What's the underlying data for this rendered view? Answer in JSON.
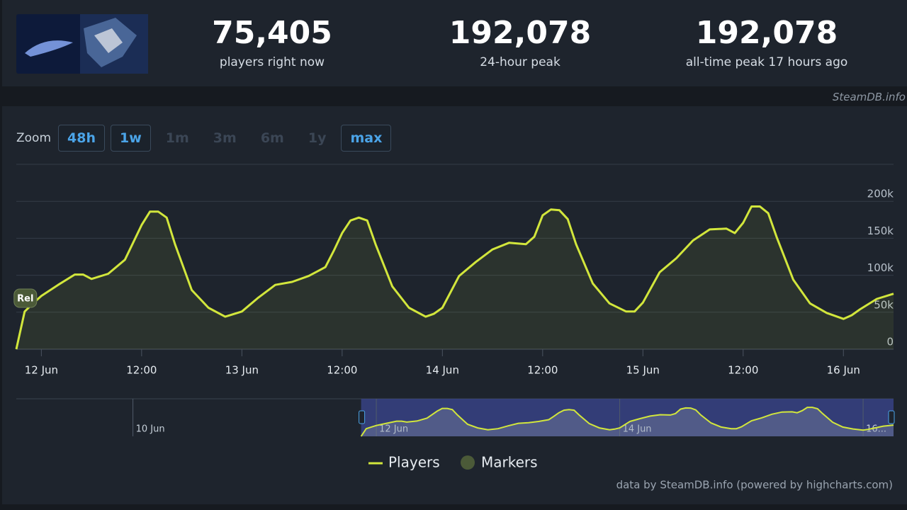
{
  "header": {
    "stats": [
      {
        "value": "75,405",
        "label": "players right now"
      },
      {
        "value": "192,078",
        "label": "24-hour peak"
      },
      {
        "value": "192,078",
        "label": "all-time peak 17 hours ago"
      }
    ],
    "watermark": "SteamDB.info"
  },
  "zoom": {
    "label": "Zoom",
    "buttons": [
      {
        "text": "48h",
        "enabled": true
      },
      {
        "text": "1w",
        "enabled": true
      },
      {
        "text": "1m",
        "enabled": false
      },
      {
        "text": "3m",
        "enabled": false
      },
      {
        "text": "6m",
        "enabled": false
      },
      {
        "text": "1y",
        "enabled": false
      },
      {
        "text": "max",
        "enabled": true
      }
    ]
  },
  "chart_data": {
    "type": "line",
    "x": [
      "11 Jun 21:00",
      "11 Jun 22:00",
      "11 Jun 23:00",
      "12 Jun 00:00",
      "12 Jun 02:00",
      "12 Jun 04:00",
      "12 Jun 05:00",
      "12 Jun 06:00",
      "12 Jun 08:00",
      "12 Jun 10:00",
      "12 Jun 12:00",
      "12 Jun 13:00",
      "12 Jun 14:00",
      "12 Jun 15:00",
      "12 Jun 16:00",
      "12 Jun 18:00",
      "12 Jun 20:00",
      "12 Jun 22:00",
      "13 Jun 00:00",
      "13 Jun 02:00",
      "13 Jun 04:00",
      "13 Jun 06:00",
      "13 Jun 08:00",
      "13 Jun 10:00",
      "13 Jun 11:00",
      "13 Jun 12:00",
      "13 Jun 13:00",
      "13 Jun 14:00",
      "13 Jun 15:00",
      "13 Jun 16:00",
      "13 Jun 18:00",
      "13 Jun 20:00",
      "13 Jun 22:00",
      "13 Jun 23:00",
      "14 Jun 00:00",
      "14 Jun 02:00",
      "14 Jun 04:00",
      "14 Jun 06:00",
      "14 Jun 08:00",
      "14 Jun 10:00",
      "14 Jun 11:00",
      "14 Jun 12:00",
      "14 Jun 13:00",
      "14 Jun 14:00",
      "14 Jun 15:00",
      "14 Jun 16:00",
      "14 Jun 18:00",
      "14 Jun 20:00",
      "14 Jun 22:00",
      "14 Jun 23:00",
      "15 Jun 00:00",
      "15 Jun 02:00",
      "15 Jun 04:00",
      "15 Jun 06:00",
      "15 Jun 08:00",
      "15 Jun 10:00",
      "15 Jun 11:00",
      "15 Jun 12:00",
      "15 Jun 13:00",
      "15 Jun 14:00",
      "15 Jun 15:00",
      "15 Jun 16:00",
      "15 Jun 18:00",
      "15 Jun 20:00",
      "15 Jun 22:00",
      "16 Jun 00:00",
      "16 Jun 01:00",
      "16 Jun 02:00",
      "16 Jun 04:00",
      "16 Jun 06:00"
    ],
    "series": [
      {
        "name": "Players",
        "color": "#d2e63c",
        "values": [
          0,
          51000,
          62000,
          72000,
          87000,
          101000,
          101000,
          95000,
          102000,
          121000,
          168000,
          186000,
          186000,
          178000,
          142000,
          80000,
          56000,
          44000,
          51000,
          70000,
          87000,
          91000,
          99000,
          111000,
          133000,
          157000,
          174000,
          178000,
          174000,
          142000,
          85000,
          56000,
          44000,
          48000,
          56000,
          99000,
          118000,
          135000,
          144000,
          142000,
          152000,
          181000,
          189000,
          188000,
          176000,
          142000,
          89000,
          62000,
          51000,
          51000,
          63000,
          104000,
          123000,
          147000,
          162000,
          163000,
          157000,
          171000,
          193000,
          193000,
          184000,
          152000,
          94000,
          62000,
          49000,
          41000,
          46000,
          54000,
          68000,
          75000
        ]
      }
    ],
    "xlim": [
      "11 Jun 21:00",
      "16 Jun 06:00"
    ],
    "xticks": [
      {
        "value": "12 Jun 00:00",
        "label": "12 Jun"
      },
      {
        "value": "12 Jun 12:00",
        "label": "12:00"
      },
      {
        "value": "13 Jun 00:00",
        "label": "13 Jun"
      },
      {
        "value": "13 Jun 12:00",
        "label": "12:00"
      },
      {
        "value": "14 Jun 00:00",
        "label": "14 Jun"
      },
      {
        "value": "14 Jun 12:00",
        "label": "12:00"
      },
      {
        "value": "15 Jun 00:00",
        "label": "15 Jun"
      },
      {
        "value": "15 Jun 12:00",
        "label": "12:00"
      },
      {
        "value": "16 Jun 00:00",
        "label": "16 Jun"
      }
    ],
    "ylim": [
      0,
      250000
    ],
    "yticks": [
      0,
      {
        "value": 50000,
        "label": "50k"
      },
      {
        "value": 100000,
        "label": "100k"
      },
      {
        "value": 150000,
        "label": "150k"
      },
      {
        "value": 200000,
        "label": "200k"
      }
    ],
    "grid": true,
    "flags": [
      {
        "x": "11 Jun 22:00",
        "text": "Rel"
      }
    ],
    "markers_legend": {
      "name": "Markers",
      "color": "#4b5a38"
    },
    "navigator": {
      "xlim": [
        "9 Jun 01:00",
        "16 Jun 06:00"
      ],
      "xticks": [
        {
          "value": "10 Jun 00:00",
          "label": "10 Jun"
        },
        {
          "value": "12 Jun 00:00",
          "label": "12 Jun"
        },
        {
          "value": "14 Jun 00:00",
          "label": "14 Jun"
        },
        {
          "value": "16 Jun 00:00",
          "label": "16..."
        }
      ]
    }
  },
  "credits": "data by SteamDB.info (powered by highcharts.com)"
}
